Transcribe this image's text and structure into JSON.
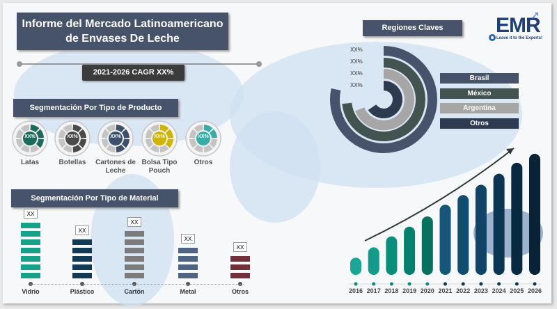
{
  "title": "Informe del Mercado Latinoamericano de Envases De Leche",
  "title_line1": "Informe del Mercado Latinoamericano",
  "title_line2": "de Envases De Leche",
  "cagr": "2021-2026 CAGR XX%",
  "logo": {
    "text": "EMR",
    "tagline": "Leave it to the Experts!"
  },
  "product_segment": {
    "heading": "Segmentación Por Tipo de Producto",
    "items": [
      {
        "label": "Latas",
        "value": "XX%",
        "color": "#1d6b5c",
        "filled": 3
      },
      {
        "label": "Botellas",
        "value": "XX%",
        "color": "#4a4a4a",
        "filled": 4
      },
      {
        "label": "Cartones de Leche",
        "value": "XX%",
        "color": "#3d4f6b",
        "filled": 4
      },
      {
        "label": "Bolsa Tipo Pouch",
        "value": "XX%",
        "color": "#d1b400",
        "filled": 3
      },
      {
        "label": "Otros",
        "value": "XX%",
        "color": "#3aaca8",
        "filled": 2
      }
    ]
  },
  "material_segment": {
    "heading": "Segmentación Por Tipo de Material",
    "items": [
      {
        "label": "Vidrio",
        "value": "XX",
        "color": "#17a08a",
        "blocks": 7
      },
      {
        "label": "Plástico",
        "value": "XX",
        "color": "#123a55",
        "blocks": 5
      },
      {
        "label": "Cartón",
        "value": "XX",
        "color": "#7c7c7c",
        "blocks": 6
      },
      {
        "label": "Metal",
        "value": "XX",
        "color": "#4d6482",
        "blocks": 4
      },
      {
        "label": "Otros",
        "value": "XX",
        "color": "#722f3c",
        "blocks": 3
      }
    ]
  },
  "regions": {
    "heading": "Regiones Claves",
    "items": [
      {
        "label": "Brasil",
        "value": "XX%",
        "color": "#46536b",
        "sweep_deg": 282
      },
      {
        "label": "México",
        "value": "XX%",
        "color": "#435350",
        "sweep_deg": 264
      },
      {
        "label": "Argentina",
        "value": "XX%",
        "color": "#a6a6a6",
        "sweep_deg": 248
      },
      {
        "label": "Otros",
        "value": "XX%",
        "color": "#2e3a4f",
        "sweep_deg": 236
      }
    ]
  },
  "chart_data": {
    "type": "bar",
    "title": "",
    "xlabel": "",
    "ylabel": "",
    "categories": [
      "2016",
      "2017",
      "2018",
      "2019",
      "2020",
      "2021",
      "2022",
      "2023",
      "2024",
      "2025",
      "2026"
    ],
    "values": [
      23,
      38,
      54,
      68,
      83,
      100,
      114,
      129,
      145,
      161,
      174
    ],
    "colors": [
      "#1aa595",
      "#139c8a",
      "#078f7b",
      "#05806d",
      "#08705e",
      "#155679",
      "#114d6e",
      "#0f4466",
      "#0b3651",
      "#082a41",
      "#0a2236"
    ]
  }
}
